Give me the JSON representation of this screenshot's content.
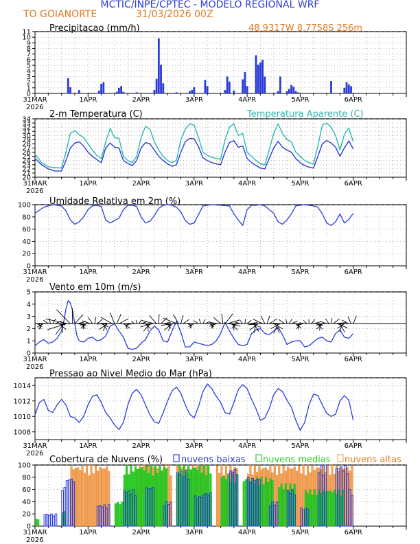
{
  "header": {
    "title": "MCTIC/INPE/CPTEC - MODELO REGIONAL WRF",
    "location": "TO GOIANORTE",
    "run": "31/03/2026 00Z",
    "coords": "48.9317W 8.7758S 256m"
  },
  "colors": {
    "orange": "#e07820",
    "blue": "#2a3ad8",
    "teal": "#2ab8b0",
    "green": "#2bcf24",
    "cloud_orange": "#f5a55a",
    "black": "#000000",
    "grid": "#999999"
  },
  "chart_data": [
    {
      "id": "precip",
      "type": "bar",
      "title": "Precipitacao (mm/h)",
      "ylim": [
        0,
        11
      ],
      "yticks": [
        "0",
        "1",
        "2",
        "3",
        "4",
        "5",
        "6",
        "7",
        "8",
        "9",
        "10",
        "11"
      ],
      "x_hours": [
        15,
        16,
        20,
        29,
        30,
        31,
        37,
        38,
        39,
        40,
        46,
        54,
        55,
        56,
        57,
        58,
        64,
        70,
        71,
        72,
        77,
        78,
        86,
        87,
        88,
        90,
        94,
        95,
        96,
        100,
        101,
        102,
        103,
        104,
        110,
        111,
        114,
        115,
        116,
        117,
        118,
        119,
        134,
        140,
        141,
        142,
        143
      ],
      "values": [
        2.7,
        1.1,
        0.6,
        0.5,
        1.7,
        2.0,
        0.3,
        1.0,
        1.3,
        0.3,
        0.2,
        0.6,
        2.6,
        9.8,
        5.1,
        1.8,
        0.2,
        0.4,
        0.6,
        1.1,
        2.4,
        1.3,
        0.6,
        3.0,
        2.1,
        0.5,
        2.5,
        3.8,
        1.3,
        6.8,
        5.1,
        5.5,
        6.0,
        3.0,
        0.4,
        3.0,
        0.4,
        0.8,
        1.5,
        1.2,
        0.4,
        0.2,
        2.2,
        1.0,
        2.0,
        1.6,
        1.3
      ]
    },
    {
      "id": "temp",
      "type": "line",
      "title": "2-m Temperatura (C)",
      "legend": "Temperatura Aparente (C)",
      "ylim": [
        20,
        34
      ],
      "yticks": [
        "20",
        "21",
        "22",
        "23",
        "24",
        "25",
        "26",
        "27",
        "28",
        "29",
        "30",
        "31",
        "32",
        "33",
        "34"
      ],
      "series": [
        {
          "name": "2-m Temperatura (C)",
          "x": [
            0,
            3,
            6,
            9,
            12,
            14,
            16,
            18,
            20,
            22,
            24,
            26,
            28,
            30,
            32,
            34,
            36,
            38,
            40,
            42,
            44,
            46,
            48,
            50,
            52,
            54,
            56,
            58,
            60,
            62,
            64,
            66,
            68,
            70,
            72,
            74,
            76,
            78,
            80,
            82,
            84,
            86,
            88,
            90,
            92,
            94,
            96,
            98,
            100,
            102,
            104,
            106,
            108,
            110,
            112,
            114,
            116,
            118,
            120,
            122,
            124,
            126,
            128,
            130,
            132,
            134,
            136,
            138,
            140,
            142,
            144
          ],
          "y": [
            24.5,
            23,
            22,
            21.5,
            21.5,
            24,
            27,
            28.2,
            28.5,
            27.5,
            26,
            25,
            24.2,
            23.5,
            27,
            28.2,
            27.2,
            27,
            24,
            23.3,
            22.8,
            24,
            27,
            28.3,
            28,
            26.5,
            25,
            24,
            23.2,
            22.6,
            23,
            26,
            28.5,
            29.3,
            29.2,
            27.3,
            24.7,
            24,
            23.5,
            23.2,
            23,
            26,
            28.3,
            28.8,
            27.2,
            27.5,
            24.5,
            23.5,
            22.8,
            22.2,
            22,
            24.5,
            27,
            28.6,
            27.2,
            26.5,
            26,
            24.5,
            23.5,
            22.8,
            22.4,
            22.2,
            25,
            28,
            28.8,
            28.2,
            27.2,
            25,
            27,
            28.7,
            26.8
          ]
        },
        {
          "name": "Temperatura Aparente (C)",
          "x": [
            0,
            3,
            6,
            9,
            12,
            14,
            16,
            18,
            20,
            22,
            24,
            26,
            28,
            30,
            32,
            34,
            36,
            38,
            40,
            42,
            44,
            46,
            48,
            50,
            52,
            54,
            56,
            58,
            60,
            62,
            64,
            66,
            68,
            70,
            72,
            74,
            76,
            78,
            80,
            82,
            84,
            86,
            88,
            90,
            92,
            94,
            96,
            98,
            100,
            102,
            104,
            106,
            108,
            110,
            112,
            114,
            116,
            118,
            120,
            122,
            124,
            126,
            128,
            130,
            132,
            134,
            136,
            138,
            140,
            142,
            144
          ],
          "y": [
            25.5,
            23.5,
            22.5,
            22.3,
            22.2,
            26,
            30.5,
            31.2,
            30.2,
            29.5,
            28,
            26.5,
            25.2,
            24.5,
            28.5,
            31.7,
            29.5,
            29.3,
            25,
            24,
            23.5,
            25,
            29.5,
            32.2,
            31.5,
            28.5,
            26.5,
            25,
            24,
            23.5,
            24,
            29,
            31.5,
            32.8,
            32.5,
            29.5,
            26,
            25.2,
            24.8,
            24.5,
            24.3,
            29,
            32,
            32.8,
            30,
            30.5,
            26,
            25,
            24,
            23.2,
            23,
            26.5,
            30.5,
            32.8,
            30.5,
            29,
            28.5,
            26,
            25,
            24,
            23.5,
            23.2,
            27.5,
            32.5,
            33,
            32,
            30,
            26.5,
            30.3,
            31.8,
            28.5
          ]
        }
      ]
    },
    {
      "id": "rh",
      "type": "line",
      "title": "Umidade Relativa em 2m (%)",
      "ylim": [
        0,
        100
      ],
      "yticks": [
        "0",
        "20",
        "40",
        "60",
        "80",
        "100"
      ],
      "series": [
        {
          "name": "Umidade Relativa em 2m (%)",
          "x": [
            0,
            4,
            8,
            12,
            14,
            16,
            18,
            20,
            22,
            24,
            26,
            28,
            30,
            32,
            34,
            36,
            38,
            40,
            42,
            44,
            46,
            48,
            50,
            52,
            54,
            56,
            58,
            60,
            62,
            64,
            66,
            68,
            70,
            72,
            74,
            76,
            78,
            80,
            84,
            88,
            90,
            92,
            94,
            96,
            98,
            100,
            102,
            104,
            106,
            108,
            110,
            112,
            114,
            116,
            118,
            120,
            122,
            124,
            126,
            128,
            130,
            132,
            134,
            136,
            138,
            140,
            142,
            144
          ],
          "y": [
            86,
            96,
            100,
            98,
            90,
            75,
            68,
            72,
            80,
            92,
            98,
            99,
            97,
            75,
            70,
            74,
            78,
            92,
            99,
            99,
            97,
            80,
            70,
            73,
            82,
            94,
            99,
            100,
            99,
            96,
            88,
            74,
            68,
            70,
            84,
            98,
            99,
            100,
            99,
            98,
            85,
            75,
            66,
            92,
            99,
            99,
            100,
            98,
            92,
            86,
            72,
            68,
            75,
            85,
            98,
            99,
            100,
            99,
            98,
            96,
            85,
            70,
            66,
            72,
            85,
            70,
            76,
            86
          ]
        }
      ]
    },
    {
      "id": "wind",
      "type": "line",
      "title": "Vento em 10m (m/s)",
      "ylim": [
        0,
        5
      ],
      "yticks": [
        "0",
        "1",
        "2",
        "3",
        "4",
        "5"
      ],
      "barb_note": "wind direction arrows drawn along 2.4 m/s",
      "series": [
        {
          "name": "Vento em 10m (m/s)",
          "x": [
            0,
            2,
            4,
            6,
            8,
            10,
            12,
            13,
            14,
            15,
            16,
            17,
            18,
            19,
            20,
            22,
            24,
            26,
            28,
            30,
            32,
            34,
            36,
            38,
            40,
            42,
            44,
            46,
            48,
            50,
            52,
            54,
            56,
            58,
            60,
            62,
            64,
            66,
            68,
            70,
            72,
            74,
            76,
            78,
            80,
            82,
            84,
            86,
            88,
            90,
            92,
            94,
            96,
            98,
            100,
            102,
            104,
            106,
            108,
            110,
            112,
            114,
            116,
            118,
            120,
            122,
            124,
            126,
            128,
            130,
            132,
            134,
            136,
            138,
            140,
            142,
            144
          ],
          "y": [
            0.6,
            0.9,
            1.1,
            0.8,
            0.9,
            1.2,
            1.8,
            2.6,
            3.6,
            4.3,
            4.1,
            3.5,
            2.4,
            1.4,
            1.0,
            0.9,
            1.2,
            1.3,
            1.0,
            1.1,
            1.4,
            2.2,
            2.4,
            1.8,
            1.3,
            0.4,
            0.3,
            0.4,
            0.8,
            1.1,
            1.8,
            2.2,
            1.9,
            1.0,
            0.9,
            1.8,
            2.6,
            1.7,
            0.5,
            0.5,
            0.9,
            0.8,
            0.7,
            0.6,
            0.7,
            1.0,
            1.6,
            2.5,
            1.8,
            1.2,
            0.7,
            0.6,
            0.7,
            1.6,
            1.9,
            2.0,
            1.6,
            1.5,
            1.8,
            2.1,
            1.5,
            0.7,
            0.9,
            1.0,
            1.0,
            0.5,
            0.6,
            0.9,
            1.2,
            1.3,
            1.0,
            0.9,
            1.6,
            1.9,
            1.3,
            1.2,
            1.6
          ]
        }
      ]
    },
    {
      "id": "press",
      "type": "line",
      "title": "Pressao ao Nivel Medio do Mar (hPa)",
      "ylim": [
        1007,
        1015
      ],
      "yticks": [
        "1008",
        "1010",
        "1012",
        "1014"
      ],
      "series": [
        {
          "name": "Pressao ao Nivel Medio do Mar (hPa)",
          "x": [
            0,
            2,
            4,
            6,
            8,
            10,
            12,
            14,
            16,
            18,
            20,
            22,
            24,
            26,
            28,
            30,
            32,
            34,
            36,
            38,
            40,
            42,
            44,
            46,
            48,
            50,
            52,
            54,
            56,
            58,
            60,
            62,
            64,
            66,
            68,
            70,
            72,
            74,
            76,
            78,
            80,
            82,
            84,
            86,
            88,
            90,
            92,
            94,
            96,
            98,
            100,
            102,
            104,
            106,
            108,
            110,
            112,
            114,
            116,
            118,
            120,
            122,
            124,
            126,
            128,
            130,
            132,
            134,
            136,
            138,
            140,
            142,
            144
          ],
          "y": [
            1010.2,
            1011.8,
            1012.2,
            1010.8,
            1010.5,
            1011.5,
            1012.2,
            1011.5,
            1010,
            1009.8,
            1009.2,
            1010,
            1011.5,
            1012.6,
            1012.8,
            1011.8,
            1010.5,
            1009.8,
            1008.9,
            1008.3,
            1009.2,
            1011.5,
            1013,
            1013.5,
            1012.8,
            1011.5,
            1010.2,
            1009.3,
            1009.1,
            1010.5,
            1012,
            1013.3,
            1013.8,
            1013,
            1011.5,
            1010.3,
            1009.8,
            1011.3,
            1013.2,
            1014.2,
            1013.6,
            1012.6,
            1011.8,
            1010.5,
            1010.3,
            1011.8,
            1013.5,
            1014.1,
            1013.6,
            1012.2,
            1011,
            1009.5,
            1009.8,
            1011,
            1012.8,
            1013.6,
            1013.2,
            1012.1,
            1011.2,
            1009.5,
            1008.2,
            1009.2,
            1011.5,
            1012.9,
            1012.7,
            1011.5,
            1010.4,
            1010,
            1010.3,
            1012,
            1012.7,
            1012.1,
            1009.5
          ]
        }
      ]
    },
    {
      "id": "clouds",
      "type": "bar",
      "title": "Cobertura de Nuvens (%)",
      "legend": [
        "nuvens baixas",
        "nuvens medias",
        "nuvens altas"
      ],
      "ylim": [
        0,
        100
      ],
      "yticks": [
        "0",
        "20",
        "40",
        "60",
        "80",
        "100"
      ],
      "series": [
        {
          "name": "nuvens altas",
          "x_ranges": [
            [
              16,
              34
            ],
            [
              46,
              62
            ],
            [
              64,
              78
            ],
            [
              82,
              92
            ],
            [
              96,
              144
            ]
          ],
          "values": [
            100,
            100,
            100,
            100,
            100
          ]
        },
        {
          "name": "nuvens medias",
          "x_ranges": [
            [
              0,
              2
            ],
            [
              12,
              14
            ],
            [
              36,
              40
            ],
            [
              40,
              60
            ],
            [
              64,
              80
            ],
            [
              84,
              92
            ],
            [
              94,
              108
            ],
            [
              110,
              118
            ],
            [
              122,
              140
            ]
          ],
          "values": [
            12,
            25,
            40,
            100,
            100,
            85,
            80,
            70,
            60
          ]
        },
        {
          "name": "nuvens baixas",
          "x_ranges": [
            [
              4,
              8
            ],
            [
              8,
              10
            ],
            [
              12,
              14
            ],
            [
              14,
              18
            ],
            [
              28,
              34
            ],
            [
              40,
              46
            ],
            [
              50,
              54
            ],
            [
              58,
              62
            ],
            [
              64,
              70
            ],
            [
              72,
              76
            ],
            [
              76,
              80
            ],
            [
              88,
              92
            ],
            [
              96,
              102
            ],
            [
              106,
              110
            ],
            [
              114,
              118
            ],
            [
              120,
              124
            ],
            [
              128,
              132
            ],
            [
              136,
              142
            ],
            [
              142,
              144
            ]
          ],
          "values": [
            20,
            20,
            65,
            80,
            35,
            60,
            65,
            40,
            92,
            50,
            55,
            95,
            80,
            40,
            60,
            30,
            100,
            100,
            60
          ]
        }
      ]
    }
  ],
  "xaxis": {
    "labels": [
      "31MAR",
      "1APR",
      "2APR",
      "3APR",
      "4APR",
      "5APR",
      "6APR"
    ],
    "year": "2026",
    "hours": [
      0,
      24,
      48,
      72,
      96,
      120,
      144,
      168
    ]
  }
}
